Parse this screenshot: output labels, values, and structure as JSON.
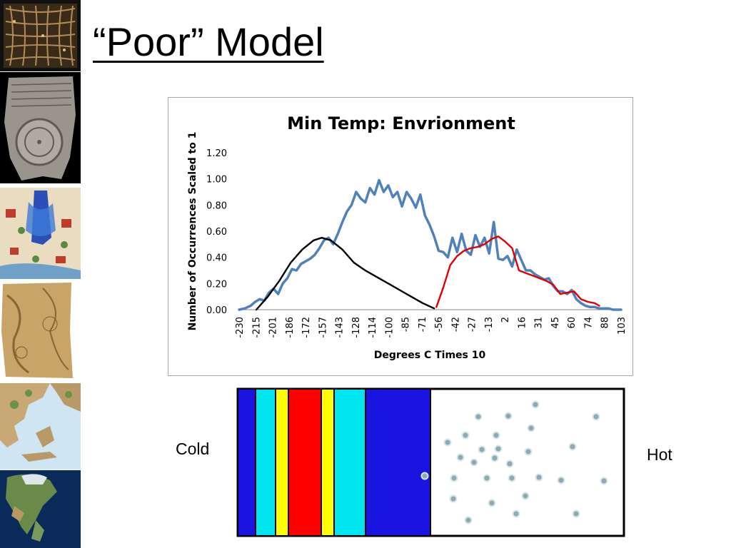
{
  "slide": {
    "title": "“Poor” Model",
    "cold_label": "Cold",
    "hot_label": "Hot"
  },
  "sidebar_images": [
    {
      "name": "grid-map-image",
      "kind": "stick chart / grid map"
    },
    {
      "name": "clay-tablet-map-image",
      "kind": "clay tablet map"
    },
    {
      "name": "medieval-map-image",
      "kind": "medieval illustrated map"
    },
    {
      "name": "old-parchment-map-image",
      "kind": "parchment map"
    },
    {
      "name": "relief-map-greece-image",
      "kind": "relief map"
    },
    {
      "name": "satellite-north-america-image",
      "kind": "satellite map"
    }
  ],
  "colors": {
    "observed": "#4f81bd",
    "cold_model": "#000000",
    "hot_model": "#e00000",
    "strip_blue": "#1a14e0",
    "strip_cyan": "#00e6ee",
    "strip_yellow": "#ffff00",
    "strip_red": "#ff0000",
    "particle": "#8aaab4"
  },
  "chart_data": {
    "type": "line",
    "title": "Min Temp: Envrionment",
    "xlabel": "Degrees C Times 10",
    "ylabel": "Number of Occurrences Scaled to 1",
    "ylim": [
      0,
      1.2
    ],
    "yticks": [
      "0.00",
      "0.20",
      "0.40",
      "0.60",
      "0.80",
      "1.00",
      "1.20"
    ],
    "xticks": [
      "-230",
      "-215",
      "-201",
      "-186",
      "-172",
      "-157",
      "-143",
      "-128",
      "-114",
      "-100",
      "-85",
      "-71",
      "-56",
      "-42",
      "-27",
      "-13",
      "2",
      "16",
      "31",
      "45",
      "60",
      "74",
      "88",
      "103"
    ],
    "xlim": [
      -230,
      103
    ],
    "grid": false,
    "legend": "none",
    "series": [
      {
        "key": "observed",
        "x": [
          -230,
          -225,
          -220,
          -216,
          -212,
          -208,
          -204,
          -200,
          -196,
          -192,
          -188,
          -184,
          -180,
          -176,
          -172,
          -168,
          -164,
          -160,
          -156,
          -152,
          -148,
          -144,
          -140,
          -136,
          -132,
          -128,
          -124,
          -120,
          -116,
          -112,
          -108,
          -104,
          -100,
          -96,
          -92,
          -88,
          -84,
          -80,
          -76,
          -72,
          -68,
          -64,
          -60,
          -56,
          -52,
          -48,
          -44,
          -40,
          -36,
          -32,
          -28,
          -24,
          -20,
          -16,
          -12,
          -8,
          -4,
          0,
          4,
          8,
          12,
          16,
          20,
          24,
          28,
          32,
          36,
          40,
          44,
          48,
          52,
          56,
          60,
          64,
          68,
          72,
          76,
          80,
          84,
          88,
          92,
          96,
          100,
          103
        ],
        "y": [
          0.0,
          0.01,
          0.03,
          0.06,
          0.08,
          0.07,
          0.13,
          0.16,
          0.12,
          0.2,
          0.24,
          0.31,
          0.3,
          0.35,
          0.37,
          0.39,
          0.42,
          0.47,
          0.53,
          0.55,
          0.5,
          0.58,
          0.67,
          0.75,
          0.8,
          0.9,
          0.85,
          0.82,
          0.93,
          0.88,
          0.99,
          0.9,
          0.95,
          0.86,
          0.9,
          0.79,
          0.9,
          0.85,
          0.78,
          0.88,
          0.72,
          0.65,
          0.56,
          0.45,
          0.44,
          0.4,
          0.55,
          0.44,
          0.58,
          0.45,
          0.42,
          0.57,
          0.48,
          0.55,
          0.43,
          0.67,
          0.39,
          0.38,
          0.41,
          0.33,
          0.46,
          0.38,
          0.3,
          0.3,
          0.27,
          0.25,
          0.23,
          0.24,
          0.18,
          0.14,
          0.14,
          0.12,
          0.15,
          0.08,
          0.05,
          0.03,
          0.02,
          0.02,
          0.01,
          0.01,
          0.01,
          0.0,
          0.0,
          0.0
        ]
      },
      {
        "key": "cold_model",
        "x": [
          -215,
          -205,
          -195,
          -185,
          -175,
          -165,
          -158,
          -150,
          -140,
          -130,
          -120,
          -110,
          -100,
          -90,
          -80,
          -70,
          -60
        ],
        "y": [
          0.0,
          0.1,
          0.22,
          0.36,
          0.46,
          0.53,
          0.55,
          0.53,
          0.46,
          0.36,
          0.3,
          0.25,
          0.2,
          0.15,
          0.1,
          0.05,
          0.01
        ]
      },
      {
        "key": "hot_model",
        "x": [
          -58,
          -52,
          -46,
          -40,
          -34,
          -28,
          -22,
          -16,
          -10,
          -4,
          2,
          8,
          14,
          20,
          26,
          32,
          38,
          44,
          50,
          56,
          62,
          68,
          74,
          80,
          84
        ],
        "y": [
          0.02,
          0.17,
          0.34,
          0.41,
          0.45,
          0.47,
          0.48,
          0.5,
          0.54,
          0.56,
          0.52,
          0.47,
          0.3,
          0.28,
          0.26,
          0.24,
          0.22,
          0.19,
          0.12,
          0.13,
          0.14,
          0.08,
          0.06,
          0.05,
          0.03
        ]
      }
    ]
  },
  "strip": {
    "bands": [
      {
        "color": "blue",
        "width": 25
      },
      {
        "color": "cyan",
        "width": 28
      },
      {
        "color": "yellow",
        "width": 18
      },
      {
        "color": "red",
        "width": 46
      },
      {
        "color": "yellow",
        "width": 18
      },
      {
        "color": "cyan",
        "width": 44
      },
      {
        "color": "blue",
        "width": 91
      }
    ],
    "particle_count": 34
  }
}
